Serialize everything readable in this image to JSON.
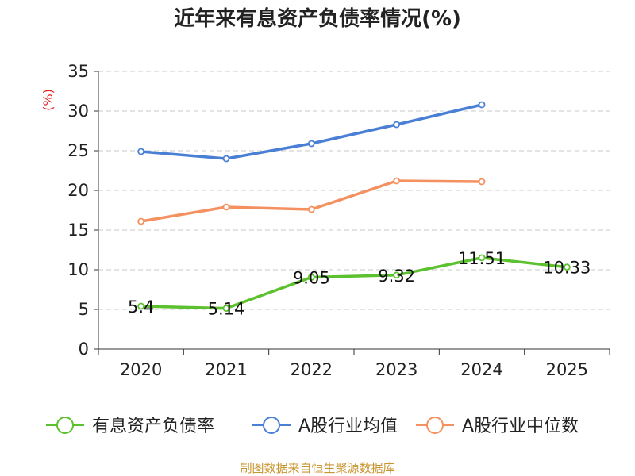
{
  "chart_data": {
    "type": "line",
    "title": "近年来有息资产负债率情况(%)",
    "ylabel": "(%)",
    "xlabel": "",
    "categories": [
      "2020",
      "2021",
      "2022",
      "2023",
      "2024",
      "2025"
    ],
    "ylim": [
      0,
      35
    ],
    "yticks": [
      0,
      5,
      10,
      15,
      20,
      25,
      30,
      35
    ],
    "grid": true,
    "legend_position": "bottom",
    "series": [
      {
        "name": "有息资产负债率",
        "color": "#5cc12e",
        "values": [
          5.4,
          5.14,
          9.05,
          9.32,
          11.51,
          10.33
        ],
        "labels": [
          "5.4",
          "5.14",
          "9.05",
          "9.32",
          "11.51",
          "10.33"
        ]
      },
      {
        "name": "A股行业均值",
        "color": "#4a7fd6",
        "values": [
          24.9,
          24.0,
          25.9,
          28.3,
          30.8,
          null
        ]
      },
      {
        "name": "A股行业中位数",
        "color": "#f59160",
        "values": [
          16.1,
          17.9,
          17.6,
          21.2,
          21.1,
          null
        ]
      }
    ],
    "source": "制图数据来自恒生聚源数据库"
  }
}
